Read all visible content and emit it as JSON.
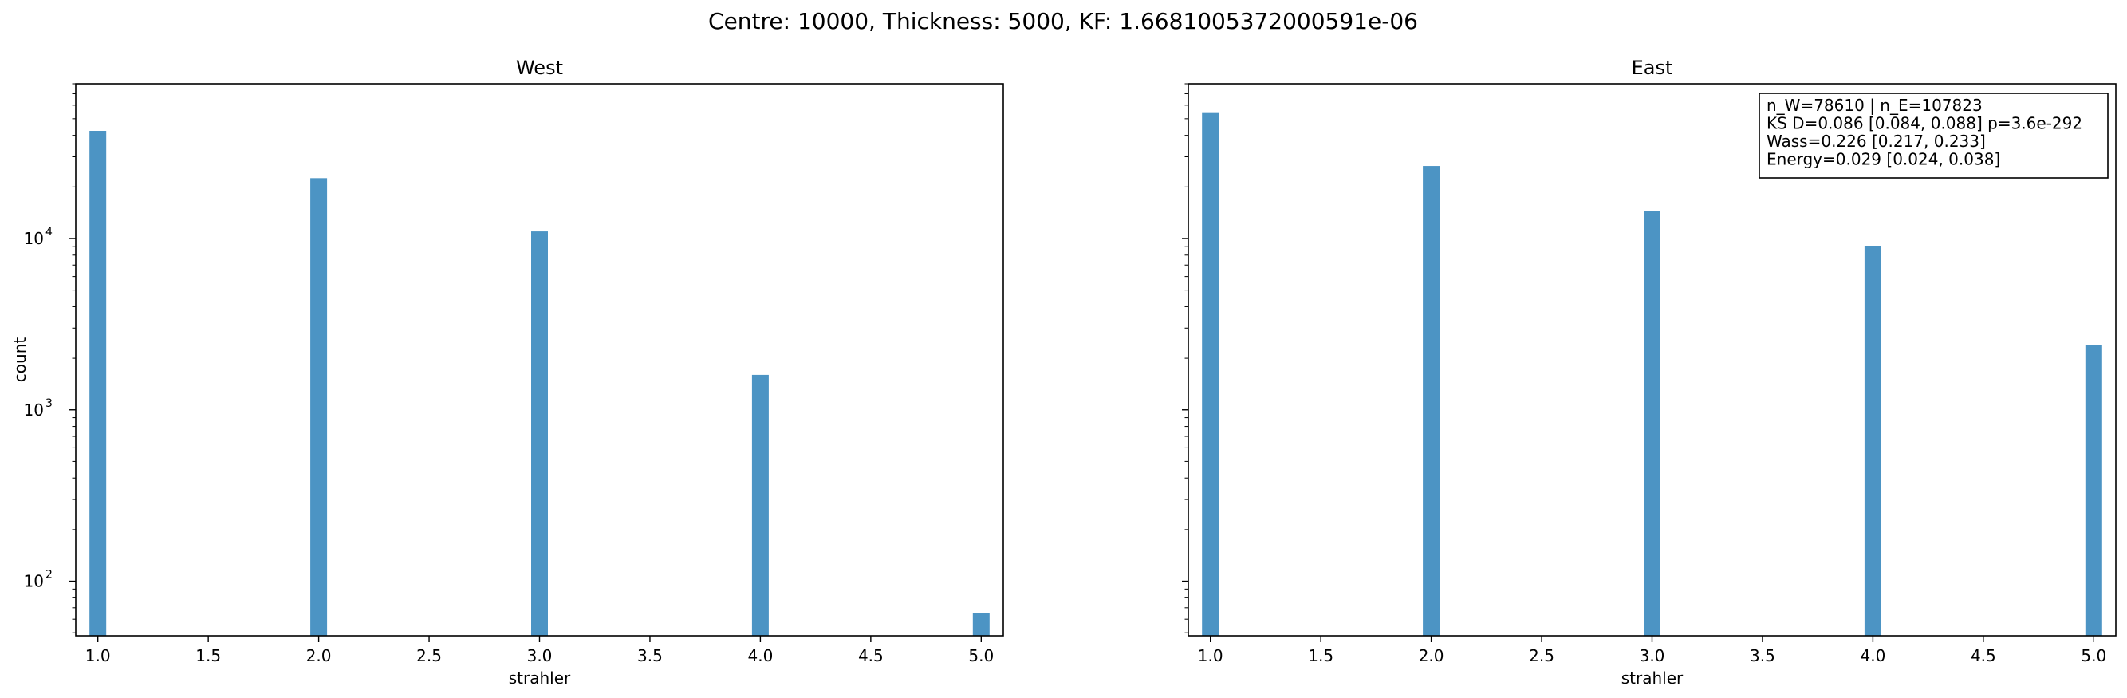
{
  "figure": {
    "suptitle": "Centre: 10000, Thickness: 5000, KF: 1.6681005372000591e-06"
  },
  "chart_data": [
    {
      "type": "bar",
      "title": "West",
      "xlabel": "strahler",
      "ylabel": "count",
      "yscale": "log",
      "xlim": [
        0.9,
        5.1
      ],
      "ylim": [
        48,
        80000
      ],
      "grid": false,
      "bar_color": "#4c94c4",
      "x": [
        1.0,
        2.0,
        3.0,
        4.0,
        5.0
      ],
      "values": [
        42500,
        22500,
        11000,
        1600,
        65
      ],
      "x_ticks": [
        "1.0",
        "1.5",
        "2.0",
        "2.5",
        "3.0",
        "3.5",
        "4.0",
        "4.5",
        "5.0"
      ],
      "y_ticks": [
        "10",
        "10",
        "10"
      ],
      "y_tick_exponents": [
        "2",
        "3",
        "4"
      ]
    },
    {
      "type": "bar",
      "title": "East",
      "xlabel": "strahler",
      "ylabel": "",
      "yscale": "log",
      "xlim": [
        0.9,
        5.1
      ],
      "ylim": [
        48,
        80000
      ],
      "grid": false,
      "bar_color": "#4c94c4",
      "x": [
        1.0,
        2.0,
        3.0,
        4.0,
        5.0
      ],
      "values": [
        54000,
        26500,
        14500,
        9000,
        2400
      ],
      "x_ticks": [
        "1.0",
        "1.5",
        "2.0",
        "2.5",
        "3.0",
        "3.5",
        "4.0",
        "4.5",
        "5.0"
      ],
      "legend_placement": "top-right",
      "stats_box": [
        "n_W=78610 | n_E=107823",
        "KS D=0.086 [0.084, 0.088]  p=3.6e-292",
        "Wass=0.226 [0.217, 0.233]",
        "Energy=0.029 [0.024, 0.038]"
      ]
    }
  ]
}
